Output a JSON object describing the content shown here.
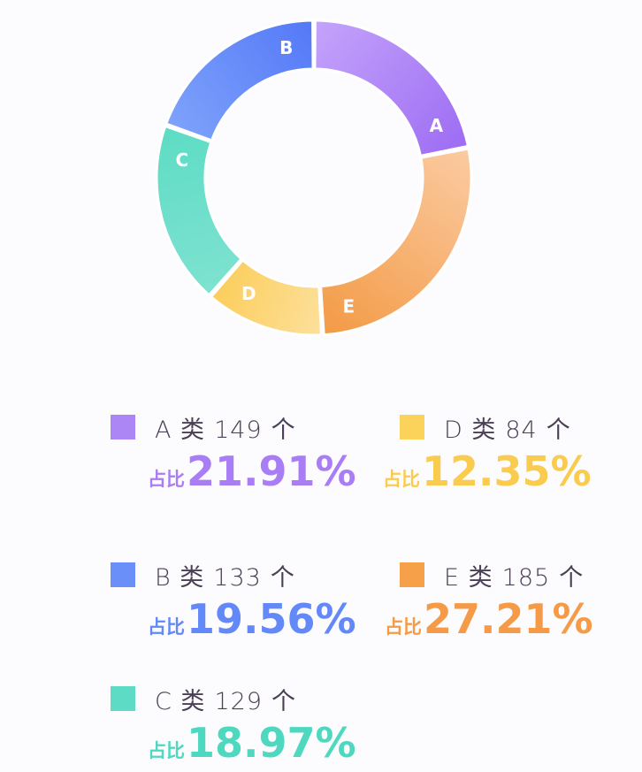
{
  "chart_data": {
    "type": "pie",
    "variant": "donut",
    "title": "",
    "categories": [
      "A",
      "B",
      "C",
      "D",
      "E"
    ],
    "values": [
      149,
      133,
      129,
      84,
      185
    ],
    "percentages": [
      21.91,
      19.56,
      18.97,
      12.35,
      27.21
    ],
    "unit": "个",
    "draw_order_clockwise_from_top": [
      "A",
      "E",
      "D",
      "C",
      "B"
    ],
    "colors": {
      "A": "#a97ef5",
      "B": "#5f87f8",
      "C": "#5dd9c1",
      "D": "#fbd366",
      "E": "#f6a04d"
    },
    "legend_position": "bottom"
  },
  "segments": [
    {
      "label": "A",
      "start": 0,
      "end": 78.88,
      "c1": "#9d6cf3",
      "c2": "#c4a4fb"
    },
    {
      "label": "E",
      "start": 78.88,
      "end": 176.84,
      "c1": "#f39a45",
      "c2": "#fbcba2"
    },
    {
      "label": "D",
      "start": 176.84,
      "end": 221.3,
      "c1": "#fbcd5a",
      "c2": "#fde09c"
    },
    {
      "label": "C",
      "start": 221.3,
      "end": 289.59,
      "c1": "#5ddcc4",
      "c2": "#7fe2d1"
    },
    {
      "label": "B",
      "start": 289.59,
      "end": 360,
      "c1": "#5478f7",
      "c2": "#7ea3fb"
    }
  ],
  "legend": [
    {
      "key": "A",
      "name": "A 类",
      "count": "149",
      "unit": "个",
      "prefix": "占比",
      "pct": "21.91%",
      "color": "#ad86f6",
      "pct_color": "#a97ef5"
    },
    {
      "key": "D",
      "name": "D 类",
      "count": "84",
      "unit": "个",
      "prefix": "占比",
      "pct": "12.35%",
      "color": "#fbd35a",
      "pct_color": "#f9cc4f"
    },
    {
      "key": "B",
      "name": "B 类",
      "count": "133",
      "unit": "个",
      "prefix": "占比",
      "pct": "19.56%",
      "color": "#6b8ff8",
      "pct_color": "#6388f7"
    },
    {
      "key": "E",
      "name": "E 类",
      "count": "185",
      "unit": "个",
      "prefix": "占比",
      "pct": "27.21%",
      "color": "#f7a04a",
      "pct_color": "#f59a47"
    },
    {
      "key": "C",
      "name": "C 类",
      "count": "129",
      "unit": "个",
      "prefix": "占比",
      "pct": "18.97%",
      "color": "#5edbc4",
      "pct_color": "#4fd8c0"
    }
  ]
}
